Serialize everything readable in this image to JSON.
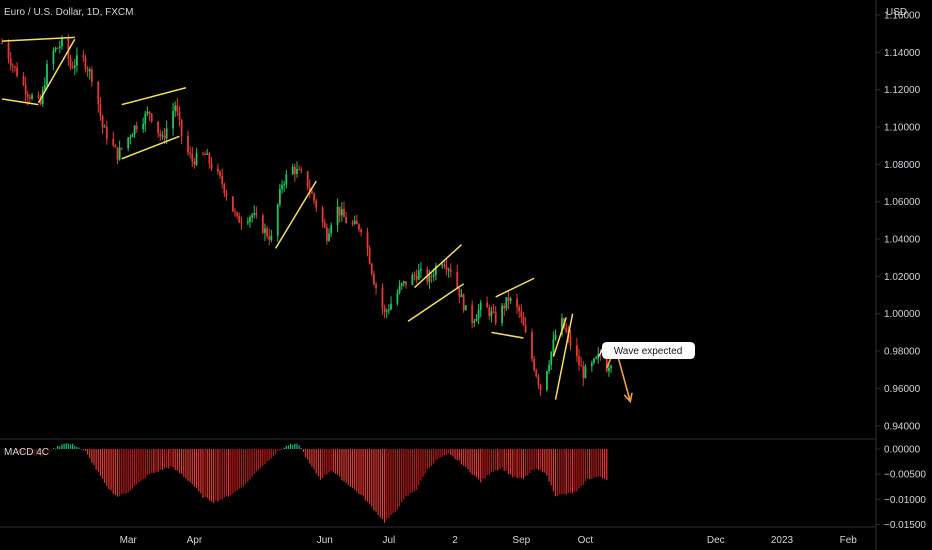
{
  "symbol_title": "Euro / U.S. Dollar, 1D, FXCM",
  "currency_label": "USD",
  "colors": {
    "background": "#000000",
    "up": "#26a69a",
    "up_bright": "#22c55e",
    "down": "#e53935",
    "down_dark": "#b71c1c",
    "trendline": "#f5e05b",
    "arrow": "#f59e3b",
    "axis_text": "#d1d4dc",
    "divider": "#2a2e39"
  },
  "chart_data": [
    {
      "type": "candlestick",
      "title": "Euro / U.S. Dollar, 1D, FXCM",
      "ylabel": "USD",
      "ylim": [
        0.934,
        1.168
      ],
      "yticks": [
        "1.16000",
        "1.14000",
        "1.12000",
        "1.10000",
        "1.08000",
        "1.06000",
        "1.04000",
        "1.02000",
        "1.00000",
        "0.98000",
        "0.96000",
        "0.94000"
      ],
      "ytick_values": [
        1.16,
        1.14,
        1.12,
        1.1,
        1.08,
        1.06,
        1.04,
        1.02,
        1.0,
        0.98,
        0.96,
        0.94
      ],
      "xticks": [
        "Mar",
        "Apr",
        "Jun",
        "Jul",
        "2",
        "Sep",
        "Oct",
        "Dec",
        "2023",
        "Feb"
      ],
      "xtick_days": [
        0,
        31,
        92,
        122,
        153,
        184,
        214,
        275,
        306,
        337
      ],
      "x_unit": "days from 2022-03-01",
      "path_days": [
        -59,
        -54,
        -47,
        -41,
        -37,
        -30,
        -27,
        -22,
        -16,
        -12,
        -5,
        3,
        10,
        16,
        22,
        26,
        30,
        36,
        44,
        51,
        58,
        67,
        72,
        77,
        83,
        88,
        93,
        97,
        103,
        110,
        115,
        120,
        128,
        136,
        141,
        146,
        151,
        156,
        160,
        166,
        172,
        178,
        183,
        188,
        193,
        197,
        202,
        208,
        213,
        217,
        221,
        223,
        226
      ],
      "path_closes": [
        1.145,
        1.133,
        1.118,
        1.112,
        1.138,
        1.146,
        1.132,
        1.138,
        1.125,
        1.1,
        1.085,
        1.1,
        1.108,
        1.093,
        1.112,
        1.09,
        1.082,
        1.085,
        1.07,
        1.05,
        1.053,
        1.04,
        1.07,
        1.078,
        1.072,
        1.058,
        1.042,
        1.058,
        1.048,
        1.046,
        1.018,
        1.0,
        1.015,
        1.022,
        1.018,
        1.03,
        1.024,
        1.008,
        0.995,
        1.005,
        0.997,
        1.008,
        1.001,
        0.98,
        0.96,
        0.975,
        0.998,
        0.981,
        0.968,
        0.972,
        0.978,
        0.97,
        0.975
      ],
      "annotation": "Wave expected",
      "trendlines": [
        {
          "points": [
            [
              -59,
              1.146
            ],
            [
              -25,
              1.148
            ]
          ]
        },
        {
          "points": [
            [
              -59,
              1.115
            ],
            [
              -42,
              1.112
            ]
          ]
        },
        {
          "points": [
            [
              -42,
              1.113
            ],
            [
              -25,
              1.147
            ]
          ]
        },
        {
          "points": [
            [
              -3,
              1.112
            ],
            [
              27,
              1.121
            ]
          ]
        },
        {
          "points": [
            [
              -3,
              1.083
            ],
            [
              24,
              1.095
            ]
          ]
        },
        {
          "points": [
            [
              69,
              1.035
            ],
            [
              88,
              1.071
            ]
          ]
        },
        {
          "points": [
            [
              134,
              1.014
            ],
            [
              156,
              1.037
            ]
          ]
        },
        {
          "points": [
            [
              131,
              0.996
            ],
            [
              157,
              1.016
            ]
          ]
        },
        {
          "points": [
            [
              172,
              1.009
            ],
            [
              190,
              1.019
            ]
          ]
        },
        {
          "points": [
            [
              170,
              0.99
            ],
            [
              185,
              0.987
            ]
          ]
        },
        {
          "points": [
            [
              200,
              0.954
            ],
            [
              208,
              1.0
            ]
          ]
        },
        {
          "points": [
            [
              199,
              0.977
            ],
            [
              205,
              0.998
            ]
          ]
        }
      ],
      "arrow_path": [
        [
          224,
          0.971
        ],
        [
          228,
          0.982
        ],
        [
          235,
          0.953
        ]
      ]
    },
    {
      "type": "histogram",
      "title": "MACD 4C",
      "ylim": [
        -0.0155,
        0.0018
      ],
      "yticks": [
        "0.00000",
        "−0.00500",
        "−0.01000",
        "−0.01500"
      ],
      "ytick_values": [
        0,
        -0.005,
        -0.01,
        -0.015
      ],
      "keyframe_days": [
        -59,
        -45,
        -40,
        -35,
        -30,
        -25,
        -20,
        -15,
        -10,
        -5,
        0,
        10,
        20,
        25,
        30,
        35,
        40,
        45,
        50,
        55,
        60,
        65,
        70,
        75,
        80,
        85,
        90,
        95,
        100,
        110,
        120,
        125,
        130,
        135,
        140,
        145,
        150,
        155,
        160,
        165,
        170,
        175,
        180,
        185,
        190,
        195,
        200,
        205,
        210,
        215,
        220,
        224
      ],
      "keyframe_values": [
        0.0,
        -0.001,
        -0.0015,
        0.0,
        0.0012,
        0.0008,
        -0.0005,
        -0.004,
        -0.0075,
        -0.0095,
        -0.0085,
        -0.005,
        -0.0035,
        -0.005,
        -0.007,
        -0.0095,
        -0.0105,
        -0.0098,
        -0.0085,
        -0.007,
        -0.0045,
        -0.0025,
        -0.0005,
        0.0008,
        0.0009,
        -0.003,
        -0.006,
        -0.0042,
        -0.006,
        -0.0095,
        -0.0145,
        -0.0125,
        -0.0095,
        -0.008,
        -0.004,
        -0.002,
        -0.001,
        -0.0025,
        -0.0045,
        -0.0065,
        -0.0045,
        -0.0038,
        -0.0055,
        -0.006,
        -0.004,
        -0.0045,
        -0.0092,
        -0.009,
        -0.0085,
        -0.006,
        -0.0055,
        -0.006
      ]
    }
  ]
}
